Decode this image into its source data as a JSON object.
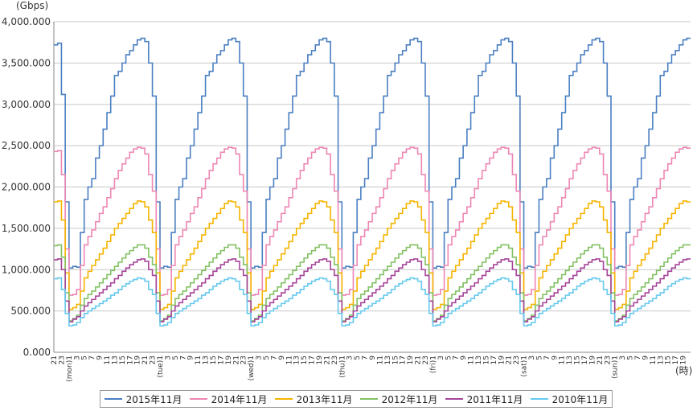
{
  "chart_data": {
    "type": "line",
    "unit_y": "(Gbps)",
    "unit_x": "(時)",
    "ylim": [
      0,
      4000000
    ],
    "yticks": [
      "0.000",
      "500.000",
      "1,000.000",
      "1,500.000",
      "2,000.000",
      "2,500.000",
      "3,000.000",
      "3,500.000",
      "4,000.000"
    ],
    "ytick_values": [
      0,
      500000,
      1000000,
      1500000,
      2000000,
      2500000,
      3000000,
      3500000,
      4000000
    ],
    "x_labels": [
      "21",
      "23",
      "(mon)1",
      "3",
      "5",
      "7",
      "9",
      "11",
      "13",
      "15",
      "17",
      "19",
      "21",
      "23",
      "(tue)1",
      "3",
      "5",
      "7",
      "9",
      "11",
      "13",
      "15",
      "17",
      "19",
      "21",
      "23",
      "(wed)1",
      "3",
      "5",
      "7",
      "9",
      "11",
      "13",
      "15",
      "17",
      "19",
      "21",
      "23",
      "(thu)1",
      "3",
      "5",
      "7",
      "9",
      "11",
      "13",
      "15",
      "17",
      "19",
      "21",
      "23",
      "(fri)1",
      "3",
      "5",
      "7",
      "9",
      "11",
      "13",
      "15",
      "17",
      "19",
      "21",
      "23",
      "(sat)1",
      "3",
      "5",
      "7",
      "9",
      "11",
      "13",
      "15",
      "17",
      "19",
      "21",
      "23",
      "(sun)1",
      "3",
      "5",
      "7",
      "9",
      "11",
      "13",
      "15",
      "17",
      "19"
    ],
    "hours_per_day": 24,
    "grid": true,
    "legend_position": "bottom",
    "series": [
      {
        "name": "2015年11月",
        "color": "#4a7fc1",
        "daily_hourly": [
          1020000,
          1040000,
          1030000,
          1450000,
          1850000,
          2000000,
          2100000,
          2350000,
          2500000,
          2700000,
          2900000,
          3100000,
          3350000,
          3400000,
          3500000,
          3600000,
          3650000,
          3720000,
          3780000,
          3800000,
          3760000,
          3500000,
          3100000,
          1820000
        ],
        "start": [
          3720000,
          3740000,
          3120000,
          1820000
        ]
      },
      {
        "name": "2014年11月",
        "color": "#ee86b4",
        "daily_hourly": [
          690000,
          700000,
          760000,
          1050000,
          1300000,
          1400000,
          1480000,
          1580000,
          1680000,
          1760000,
          1870000,
          1980000,
          2100000,
          2200000,
          2280000,
          2350000,
          2420000,
          2460000,
          2480000,
          2470000,
          2400000,
          2150000,
          1950000,
          1250000
        ],
        "start": [
          2430000,
          2440000,
          2150000,
          1250000
        ]
      },
      {
        "name": "2013年11月",
        "color": "#f5b400",
        "daily_hourly": [
          520000,
          540000,
          580000,
          740000,
          900000,
          980000,
          1050000,
          1120000,
          1190000,
          1260000,
          1340000,
          1420000,
          1500000,
          1560000,
          1620000,
          1680000,
          1740000,
          1800000,
          1830000,
          1820000,
          1760000,
          1600000,
          1450000,
          960000
        ],
        "start": [
          1820000,
          1830000,
          1600000,
          960000
        ]
      },
      {
        "name": "2012年11月",
        "color": "#82c062",
        "daily_hourly": [
          380000,
          410000,
          450000,
          570000,
          650000,
          700000,
          740000,
          790000,
          840000,
          890000,
          940000,
          990000,
          1040000,
          1090000,
          1140000,
          1190000,
          1230000,
          1270000,
          1300000,
          1300000,
          1260000,
          1150000,
          1060000,
          720000
        ],
        "start": [
          1290000,
          1300000,
          1150000,
          720000
        ]
      },
      {
        "name": "2011年11月",
        "color": "#a6449a",
        "daily_hourly": [
          370000,
          400000,
          430000,
          500000,
          560000,
          600000,
          640000,
          680000,
          720000,
          760000,
          800000,
          840000,
          890000,
          930000,
          980000,
          1020000,
          1060000,
          1090000,
          1120000,
          1130000,
          1100000,
          1000000,
          930000,
          620000
        ],
        "start": [
          1120000,
          1130000,
          1000000,
          620000
        ]
      },
      {
        "name": "2010年11月",
        "color": "#66c9ee",
        "daily_hourly": [
          320000,
          330000,
          360000,
          420000,
          470000,
          500000,
          530000,
          560000,
          590000,
          620000,
          650000,
          690000,
          720000,
          760000,
          800000,
          830000,
          860000,
          880000,
          900000,
          890000,
          860000,
          760000,
          700000,
          470000
        ],
        "start": [
          890000,
          900000,
          760000,
          470000
        ]
      }
    ]
  }
}
